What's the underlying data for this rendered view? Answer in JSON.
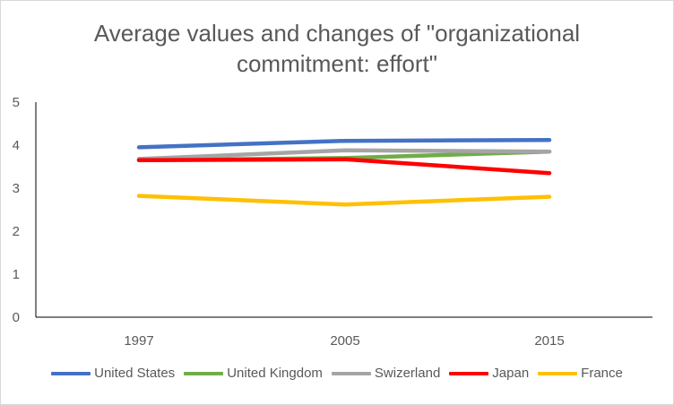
{
  "chart_data": {
    "type": "line",
    "title": "Average values and changes of \"organizational\ncommitment: effort\"",
    "categories": [
      "1997",
      "2005",
      "2015"
    ],
    "ylim": [
      0,
      5
    ],
    "yticks": [
      "0",
      "1",
      "2",
      "3",
      "4",
      "5"
    ],
    "grid": false,
    "legend": "bottom",
    "series": [
      {
        "name": "United States",
        "color": "#4472C4",
        "values": [
          3.95,
          4.1,
          4.12
        ]
      },
      {
        "name": "United Kingdom",
        "color": "#70AD47",
        "values": [
          3.65,
          3.7,
          3.85
        ]
      },
      {
        "name": "Swizerland",
        "color": "#A5A5A5",
        "values": [
          3.68,
          3.88,
          3.85
        ]
      },
      {
        "name": "Japan",
        "color": "#FF0000",
        "values": [
          3.65,
          3.67,
          3.35
        ]
      },
      {
        "name": "France",
        "color": "#FFC000",
        "values": [
          2.82,
          2.62,
          2.8
        ]
      }
    ]
  }
}
